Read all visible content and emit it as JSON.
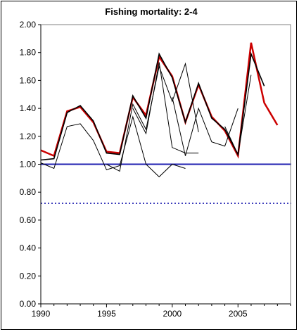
{
  "chart_data": {
    "type": "line",
    "title": "Fishing mortality: 2-4",
    "xlabel": "",
    "ylabel": "",
    "xlim": [
      1990,
      2009
    ],
    "ylim": [
      0,
      2.0
    ],
    "x_ticks": [
      "1990",
      "1995",
      "2000",
      "2005"
    ],
    "y_ticks": [
      "0.00",
      "0.20",
      "0.40",
      "0.60",
      "0.80",
      "1.00",
      "1.20",
      "1.40",
      "1.60",
      "1.80",
      "2.00"
    ],
    "grid": false,
    "legend": "none",
    "reference_lines": [
      {
        "y": 1.0,
        "style": "solid",
        "color": "#1f1fb0"
      },
      {
        "y": 0.72,
        "style": "dotted",
        "color": "#1f1fb0"
      }
    ],
    "series": [
      {
        "color": "#cc0000",
        "width": 2.5,
        "x": [
          1990,
          1991,
          1992,
          1993,
          1994,
          1995,
          1996,
          1997,
          1998,
          1999,
          2000,
          2001,
          2002,
          2003,
          2004,
          2005,
          2006,
          2007,
          2008
        ],
        "y": [
          1.1,
          1.06,
          1.38,
          1.41,
          1.3,
          1.09,
          1.08,
          1.48,
          1.35,
          1.77,
          1.63,
          1.3,
          1.57,
          1.34,
          1.24,
          1.06,
          1.87,
          1.44,
          1.28
        ]
      },
      {
        "color": "#000000",
        "width": 1.6,
        "x": [
          1990,
          1991,
          1992,
          1993,
          1994,
          1995,
          1996,
          1997,
          1998,
          1999,
          2000,
          2001,
          2002,
          2003,
          2004,
          2005,
          2006,
          2007
        ],
        "y": [
          1.03,
          1.04,
          1.37,
          1.42,
          1.31,
          1.08,
          1.07,
          1.49,
          1.33,
          1.79,
          1.62,
          1.3,
          1.58,
          1.33,
          1.25,
          1.07,
          1.79,
          1.56
        ]
      },
      {
        "color": "#000000",
        "width": 1,
        "x": [
          1990,
          1991,
          1992,
          1993,
          1994,
          1995,
          1996,
          1997,
          1998,
          1999,
          2000,
          2001
        ],
        "y": [
          1.01,
          0.97,
          1.27,
          1.29,
          1.17,
          0.96,
          0.99,
          1.34,
          1.0,
          0.91,
          1.0,
          0.97
        ]
      },
      {
        "color": "#000000",
        "width": 1,
        "x": [
          1995,
          1996,
          1997,
          1998,
          1999,
          2000,
          2001,
          2002
        ],
        "y": [
          1.0,
          0.95,
          1.43,
          1.25,
          1.7,
          1.45,
          1.72,
          1.23
        ]
      },
      {
        "color": "#000000",
        "width": 1,
        "x": [
          1997,
          1998,
          1999,
          2000,
          2001,
          2002
        ],
        "y": [
          1.4,
          1.22,
          1.73,
          1.12,
          1.08,
          1.08
        ]
      },
      {
        "color": "#000000",
        "width": 1,
        "x": [
          2000,
          2001,
          2002,
          2003,
          2004,
          2005
        ],
        "y": [
          1.48,
          1.06,
          1.4,
          1.16,
          1.13,
          1.4
        ]
      },
      {
        "color": "#000000",
        "width": 1,
        "x": [
          2004,
          2005,
          2006
        ],
        "y": [
          1.27,
          1.07,
          1.64
        ]
      }
    ]
  }
}
